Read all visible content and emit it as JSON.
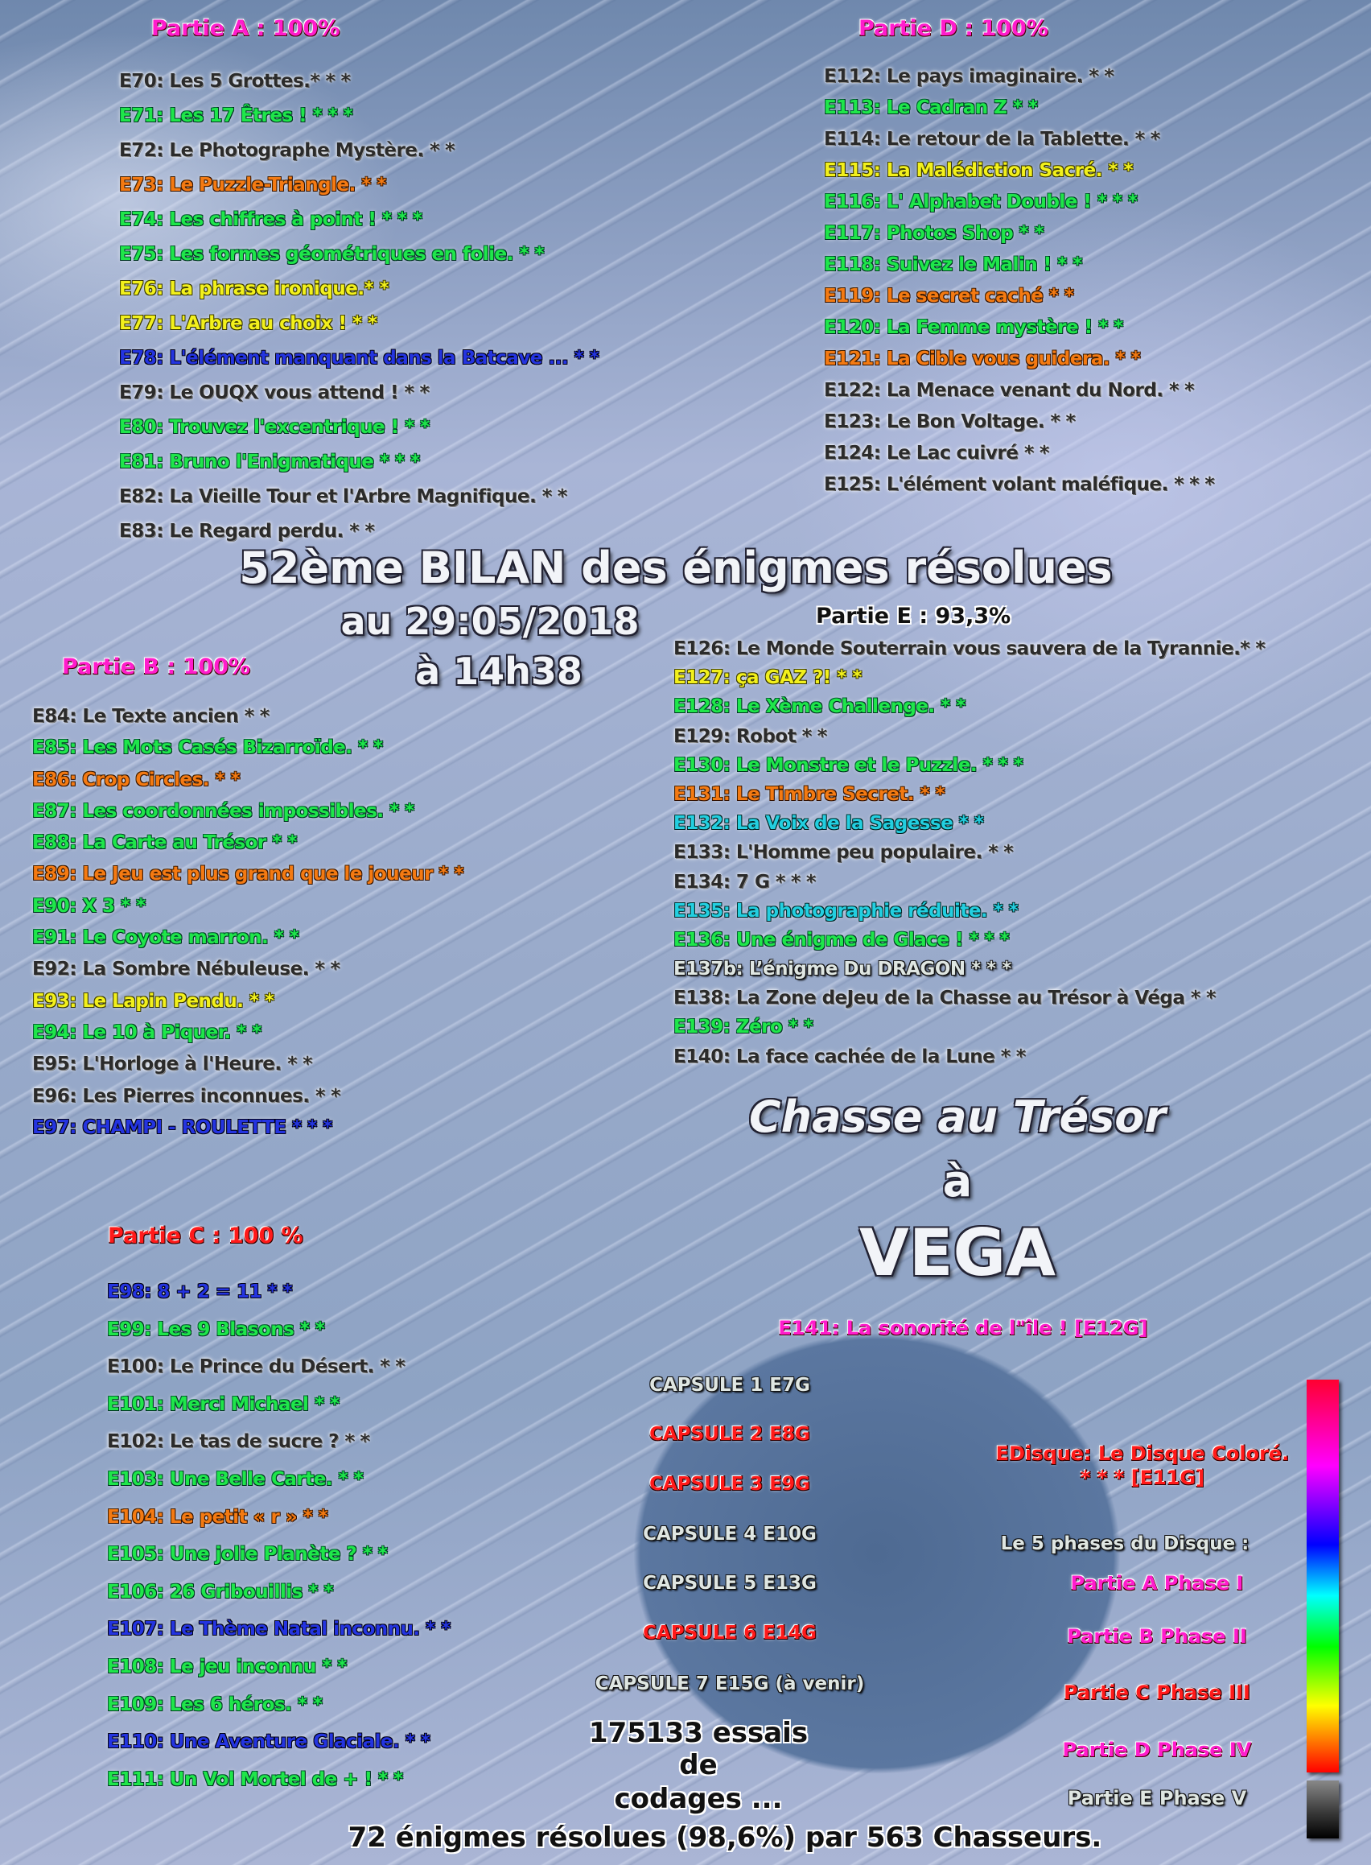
{
  "title": {
    "line1": "52ème BILAN des énigmes résolues",
    "line2": "au 29:05/2018",
    "line3": "à 14h38"
  },
  "parts": {
    "A": {
      "title": "Partie A : 100%",
      "color": "pink",
      "items": [
        {
          "text": "E70: Les 5 Grottes.* * *",
          "color": "black"
        },
        {
          "text": "E71: Les 17 Êtres ! * * *",
          "color": "green"
        },
        {
          "text": "E72: Le Photographe Mystère. * *",
          "color": "black"
        },
        {
          "text": "E73: Le Puzzle-Triangle. * *",
          "color": "orange"
        },
        {
          "text": "E74: Les chiffres à point ! * * *",
          "color": "green"
        },
        {
          "text": "E75: Les formes géométriques en folie. * *",
          "color": "green"
        },
        {
          "text": "E76: La phrase ironique.* *",
          "color": "yellow"
        },
        {
          "text": "E77: L'Arbre au choix ! * *",
          "color": "yellow"
        },
        {
          "text": "E78: L'élément manquant dans la Batcave ...  * *",
          "color": "blue"
        },
        {
          "text": "E79: Le OUQX vous attend ! * *",
          "color": "black"
        },
        {
          "text": "E80: Trouvez l'excentrique ! * *",
          "color": "green"
        },
        {
          "text": "E81: Bruno l'Enigmatique * * *",
          "color": "green"
        },
        {
          "text": "E82: La Vieille Tour et l'Arbre Magnifique. * *",
          "color": "black"
        },
        {
          "text": "E83: Le Regard perdu. * *",
          "color": "black"
        }
      ]
    },
    "B": {
      "title": "Partie B : 100%",
      "color": "pink",
      "items": [
        {
          "text": "E84: Le Texte ancien * *",
          "color": "black"
        },
        {
          "text": "E85: Les Mots Casés Bizarroïde. * *",
          "color": "green"
        },
        {
          "text": "E86: Crop Circles. * *",
          "color": "orange"
        },
        {
          "text": "E87: Les coordonnées impossibles. * *",
          "color": "green"
        },
        {
          "text": "E88: La Carte au Trésor * *",
          "color": "green"
        },
        {
          "text": "E89: Le Jeu est plus grand que le joueur * *",
          "color": "orange"
        },
        {
          "text": "E90: X 3 * *",
          "color": "green"
        },
        {
          "text": "E91: Le Coyote marron. * *",
          "color": "green"
        },
        {
          "text": "E92: La Sombre Nébuleuse. * *",
          "color": "black"
        },
        {
          "text": "E93: Le Lapin Pendu. * *",
          "color": "yellow"
        },
        {
          "text": "E94: Le 10 à Piquer. * *",
          "color": "green"
        },
        {
          "text": "E95: L'Horloge à l'Heure. * *",
          "color": "black"
        },
        {
          "text": "E96: Les Pierres inconnues. * *",
          "color": "black"
        },
        {
          "text": "E97: CHAMPI - ROULETTE * * *",
          "color": "blue"
        }
      ]
    },
    "C": {
      "title": "Partie C : 100 %",
      "color": "red",
      "items": [
        {
          "text": "E98: 8 + 2 = 11 * *",
          "color": "blue"
        },
        {
          "text": "E99: Les 9 Blasons * *",
          "color": "green"
        },
        {
          "text": "E100: Le Prince du Désert. * *",
          "color": "black"
        },
        {
          "text": "E101: Merci Michael * *",
          "color": "green"
        },
        {
          "text": "E102: Le tas de sucre ? * *",
          "color": "black"
        },
        {
          "text": "E103: Une Belle Carte. * *",
          "color": "green"
        },
        {
          "text": "E104: Le petit « r » * *",
          "color": "orange"
        },
        {
          "text": "E105: Une jolie Planète ? * *",
          "color": "green"
        },
        {
          "text": "E106: 26 Gribouillis * *",
          "color": "green"
        },
        {
          "text": "E107: Le Thème Natal inconnu. * *",
          "color": "blue"
        },
        {
          "text": "E108: Le jeu inconnu * *",
          "color": "green"
        },
        {
          "text": "E109: Les 6 héros. * *",
          "color": "green"
        },
        {
          "text": "E110: Une Aventure Glaciale. * *",
          "color": "blue"
        },
        {
          "text": "E111: Un Vol Mortel de + ! * *",
          "color": "green"
        }
      ]
    },
    "D": {
      "title": "Partie D : 100%",
      "color": "pink",
      "items": [
        {
          "text": "E112: Le pays imaginaire. * *",
          "color": "black"
        },
        {
          "text": "E113: Le Cadran Z * *",
          "color": "green"
        },
        {
          "text": "E114: Le retour de la Tablette. * *",
          "color": "black"
        },
        {
          "text": "E115: La Malédiction Sacré. * *",
          "color": "yellow"
        },
        {
          "text": "E116: L' Alphabet Double ! * * *",
          "color": "green"
        },
        {
          "text": "E117: Photos Shop * *",
          "color": "green"
        },
        {
          "text": "E118: Suivez le Malin ! * *",
          "color": "green"
        },
        {
          "text": "E119: Le secret caché * *",
          "color": "orange"
        },
        {
          "text": "E120: La Femme mystère ! * *",
          "color": "green"
        },
        {
          "text": "E121: La Cible vous guidera. * *",
          "color": "orange"
        },
        {
          "text": "E122: La Menace venant du Nord. * *",
          "color": "black"
        },
        {
          "text": "E123: Le Bon Voltage. * *",
          "color": "black"
        },
        {
          "text": "E124: Le Lac cuivré * *",
          "color": "black"
        },
        {
          "text": "E125: L'élément volant maléfique. * * *",
          "color": "black"
        }
      ]
    },
    "E": {
      "title": "Partie E : 93,3%",
      "color": "blackw",
      "items": [
        {
          "text": "E126: Le Monde Souterrain vous sauvera de la Tyrannie.* *",
          "color": "black"
        },
        {
          "text": "E127: ça GAZ ?! * *",
          "color": "yellow"
        },
        {
          "text": "E128: Le Xème Challenge. * *",
          "color": "green"
        },
        {
          "text": "E129: Robot * *",
          "color": "black"
        },
        {
          "text": "E130: Le Monstre et le Puzzle. * * *",
          "color": "green"
        },
        {
          "text": "E131: Le Timbre Secret. * *",
          "color": "orange"
        },
        {
          "text": "E132: La Voix de la Sagesse * *",
          "color": "cyan"
        },
        {
          "text": "E133: L'Homme peu populaire. * *",
          "color": "black"
        },
        {
          "text": "E134: 7 G * * *",
          "color": "black"
        },
        {
          "text": "E135: La photographie réduite. * *",
          "color": "cyan"
        },
        {
          "text": "E136: Une énigme de Glace ! * * *",
          "color": "green"
        },
        {
          "text": "E137b: L’énigme Du DRAGON * * *",
          "color": "silver"
        },
        {
          "text": "E138: La Zone deJeu de la Chasse au Trésor à Véga * *",
          "color": "black"
        },
        {
          "text": "E139: Zéro * *",
          "color": "green"
        },
        {
          "text": "E140: La face cachée de la Lune * *",
          "color": "black"
        }
      ]
    }
  },
  "hunt": {
    "line1": "Chasse au Trésor",
    "line2": "à",
    "line3": "VEGA"
  },
  "e141": "E141: La sonorité de l\"île ! [E12G]",
  "capsules": [
    {
      "text": "CAPSULE 1 E7G",
      "color": "silver"
    },
    {
      "text": "CAPSULE 2 E8G",
      "color": "red"
    },
    {
      "text": "CAPSULE 3 E9G",
      "color": "red"
    },
    {
      "text": "CAPSULE 4 E10G",
      "color": "silver"
    },
    {
      "text": "CAPSULE 5 E13G",
      "color": "silver"
    },
    {
      "text": "CAPSULE 6 E14G",
      "color": "red"
    },
    {
      "text": "CAPSULE 7 E15G (à venir)",
      "color": "silver"
    }
  ],
  "disque": {
    "line1": "EDisque: Le Disque Coloré.",
    "line2": "* * * [E11G]"
  },
  "phases": {
    "title": "Le 5 phases du Disque :",
    "items": [
      {
        "text": "Partie A Phase I",
        "color": "pink"
      },
      {
        "text": "Partie B Phase II",
        "color": "pink"
      },
      {
        "text": "Partie C Phase III",
        "color": "red"
      },
      {
        "text": "Partie D Phase IV",
        "color": "pink"
      },
      {
        "text": "Partie E Phase V",
        "color": "silver"
      }
    ]
  },
  "attempts": {
    "line1": "175133 essais",
    "line2": "de",
    "line3": "codages ..."
  },
  "summary": "72 énigmes résolues (98,6%) par 563 Chasseurs.",
  "colors": {
    "black": "#2b2b2b",
    "green": "#1fe64a",
    "orange": "#f47a12",
    "yellow": "#f2f01c",
    "blue": "#2434e0",
    "cyan": "#23cfe0",
    "pink": "#ff1ccc",
    "red": "#ff1a1a",
    "silver": "#dfe6e2"
  }
}
